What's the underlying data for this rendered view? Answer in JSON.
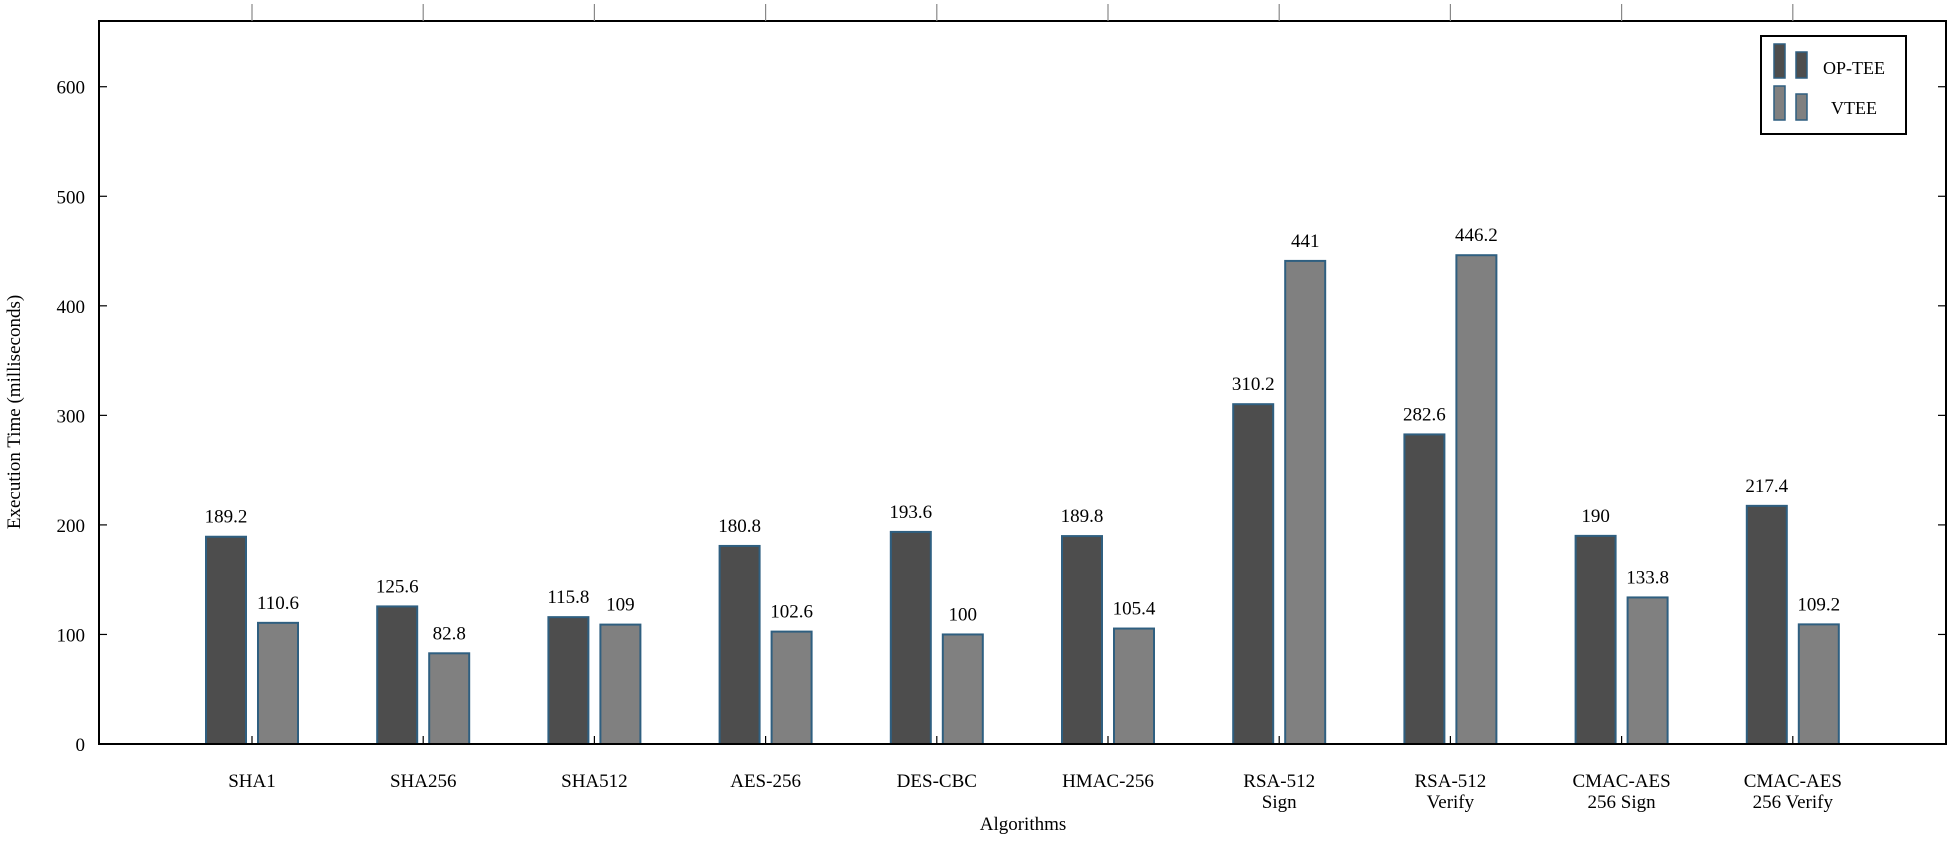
{
  "chart_data": {
    "type": "bar",
    "title": "",
    "xlabel": "Algorithms",
    "ylabel": "Execution Time (milliseconds)",
    "ylim": [
      0,
      660
    ],
    "yticks": [
      0,
      100,
      200,
      300,
      400,
      500,
      600
    ],
    "grid": false,
    "legend_position": "top-right",
    "categories": [
      [
        "SHA1"
      ],
      [
        "SHA256"
      ],
      [
        "SHA512"
      ],
      [
        "AES-256"
      ],
      [
        "DES-CBC"
      ],
      [
        "HMAC-256"
      ],
      [
        "RSA-512",
        "Sign"
      ],
      [
        "RSA-512",
        "Verify"
      ],
      [
        "CMAC-AES",
        "256 Sign"
      ],
      [
        "CMAC-AES",
        "256 Verify"
      ]
    ],
    "series": [
      {
        "name": "OP-TEE",
        "color": "#4d4d4d",
        "values": [
          189.2,
          125.6,
          115.8,
          180.8,
          193.6,
          189.8,
          310.2,
          282.6,
          190,
          217.4
        ],
        "labels": [
          "189.2",
          "125.6",
          "115.8",
          "180.8",
          "193.6",
          "189.8",
          "310.2",
          "282.6",
          "190",
          "217.4"
        ]
      },
      {
        "name": "VTEE",
        "color": "#808080",
        "values": [
          110.6,
          82.8,
          109,
          102.6,
          100,
          105.4,
          441,
          446.2,
          133.8,
          109.2
        ],
        "labels": [
          "110.6",
          "82.8",
          "109",
          "102.6",
          "100",
          "105.4",
          "441",
          "446.2",
          "133.8",
          "109.2"
        ]
      }
    ],
    "bar_edge_color": "#2f5f80"
  }
}
